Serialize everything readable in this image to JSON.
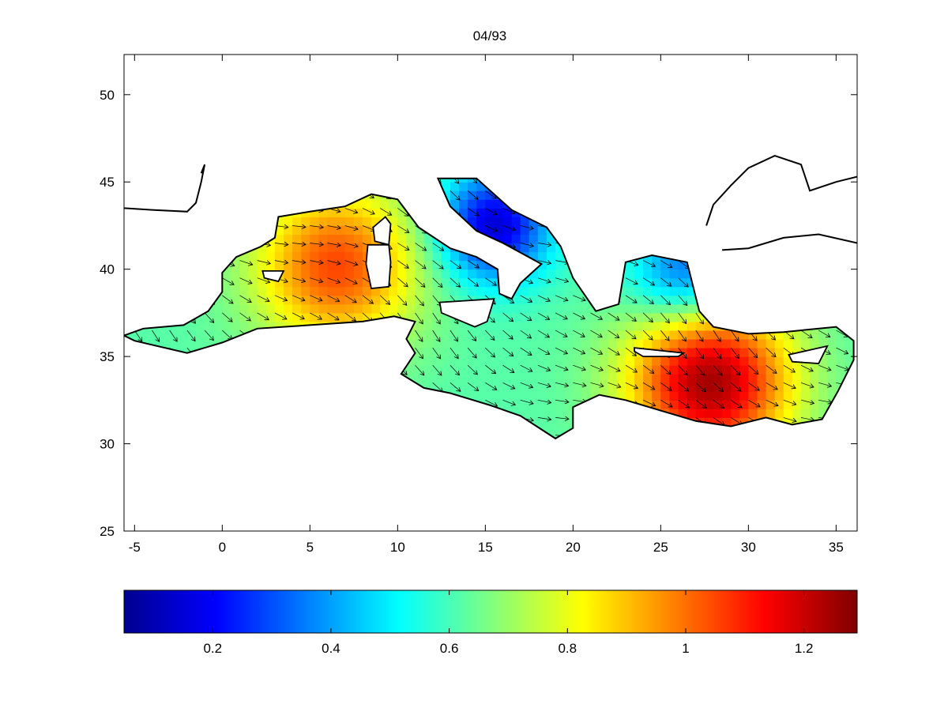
{
  "chart_data": {
    "type": "heatmap",
    "title": "04/93",
    "xlabel": "",
    "ylabel": "",
    "xlim": [
      -5.6,
      36.2
    ],
    "ylim": [
      25,
      52.3
    ],
    "xticks": [
      -5,
      0,
      5,
      10,
      15,
      20,
      25,
      30,
      35
    ],
    "xtick_labels": [
      "-5",
      "0",
      "5",
      "10",
      "15",
      "20",
      "25",
      "30",
      "35"
    ],
    "yticks": [
      25,
      30,
      35,
      40,
      45,
      50
    ],
    "ytick_labels": [
      "25",
      "30",
      "35",
      "40",
      "45",
      "50"
    ],
    "grid": false,
    "colormap": "jet",
    "colorbar": {
      "orientation": "horizontal",
      "placement": "bottom",
      "range": [
        0.05,
        1.29
      ],
      "ticks": [
        0.2,
        0.4,
        0.6,
        0.8,
        1.0,
        1.2
      ],
      "tick_labels": [
        "0.2",
        "0.4",
        "0.6",
        "0.8",
        "1",
        "1.2"
      ]
    },
    "field_peaks": [
      {
        "lon": 6.5,
        "lat": 40.2,
        "value": 1.05
      },
      {
        "lon": 27.8,
        "lat": 33.6,
        "value": 1.25
      },
      {
        "lon": 15.5,
        "lat": 42.5,
        "value": 0.15
      },
      {
        "lon": 26.5,
        "lat": 39.8,
        "value": 0.3
      }
    ],
    "vectors": "wind/stress arrows over the sea field, predominantly southeastward"
  }
}
